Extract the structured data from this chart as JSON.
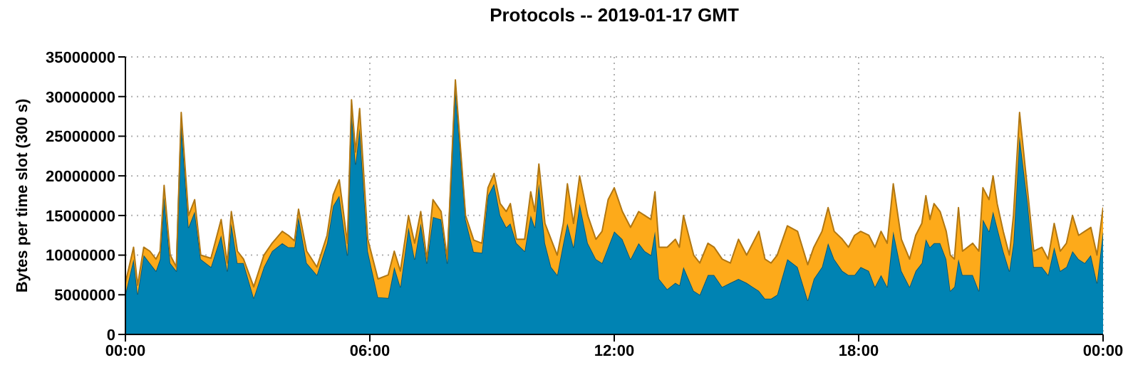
{
  "chart_data": {
    "type": "area",
    "title": "Protocols -- 2019-01-17 GMT",
    "ylabel": "Bytes per time slot (300 s)",
    "stacked": true,
    "grid": true,
    "legend": false,
    "x": [
      0,
      0.2,
      0.3,
      0.45,
      0.6,
      0.75,
      0.85,
      0.95,
      1.1,
      1.25,
      1.37,
      1.55,
      1.7,
      1.85,
      2.1,
      2.35,
      2.5,
      2.6,
      2.75,
      2.9,
      3.15,
      3.4,
      3.6,
      3.85,
      4.0,
      4.15,
      4.25,
      4.45,
      4.7,
      4.95,
      5.1,
      5.25,
      5.45,
      5.55,
      5.65,
      5.75,
      5.95,
      6.2,
      6.45,
      6.6,
      6.75,
      6.95,
      7.1,
      7.25,
      7.4,
      7.55,
      7.75,
      7.9,
      8.1,
      8.35,
      8.55,
      8.75,
      8.9,
      9.05,
      9.2,
      9.35,
      9.45,
      9.6,
      9.8,
      9.95,
      10.05,
      10.15,
      10.3,
      10.45,
      10.6,
      10.75,
      10.85,
      11.0,
      11.15,
      11.35,
      11.55,
      11.7,
      11.85,
      12.0,
      12.2,
      12.4,
      12.6,
      12.75,
      12.9,
      13.0,
      13.1,
      13.3,
      13.5,
      13.6,
      13.7,
      13.95,
      14.1,
      14.3,
      14.45,
      14.65,
      14.85,
      15.05,
      15.25,
      15.4,
      15.55,
      15.7,
      15.85,
      16.0,
      16.25,
      16.5,
      16.75,
      16.9,
      17.1,
      17.25,
      17.4,
      17.6,
      17.75,
      17.9,
      18.05,
      18.25,
      18.4,
      18.55,
      18.7,
      18.85,
      19.05,
      19.25,
      19.4,
      19.55,
      19.65,
      19.75,
      19.85,
      20.0,
      20.15,
      20.25,
      20.35,
      20.45,
      20.55,
      20.8,
      20.95,
      21.05,
      21.2,
      21.3,
      21.4,
      21.55,
      21.7,
      21.8,
      21.95,
      22.15,
      22.3,
      22.5,
      22.65,
      22.8,
      22.95,
      23.1,
      23.25,
      23.4,
      23.55,
      23.7,
      23.85,
      24.0
    ],
    "series": [
      {
        "color": "#0083b3",
        "values": [
          5100000.0,
          9500000.0,
          5100000.0,
          10000000.0,
          9000000.0,
          8000000.0,
          9500000.0,
          17300000.0,
          9000000.0,
          8000000.0,
          26800000.0,
          13500000.0,
          15500000.0,
          9500000.0,
          8500000.0,
          12500000.0,
          8000000.0,
          14000000.0,
          9000000.0,
          9000000.0,
          4600000.0,
          8500000.0,
          10500000.0,
          11500000.0,
          11000000.0,
          11000000.0,
          14800000.0,
          9000000.0,
          7500000.0,
          11500000.0,
          16200000.0,
          17500000.0,
          10000000.0,
          28000000.0,
          21500000.0,
          26000000.0,
          10500000.0,
          4700000.0,
          4600000.0,
          8500000.0,
          6000000.0,
          13500000.0,
          9500000.0,
          14000000.0,
          9000000.0,
          14800000.0,
          14500000.0,
          9000000.0,
          31000000.0,
          14500000.0,
          10400000.0,
          10300000.0,
          17500000.0,
          19000000.0,
          15000000.0,
          13500000.0,
          14000000.0,
          11500000.0,
          10500000.0,
          15000000.0,
          13500000.0,
          19000000.0,
          11500000.0,
          8500000.0,
          7500000.0,
          11500000.0,
          14000000.0,
          11000000.0,
          16500000.0,
          11500000.0,
          9500000.0,
          9000000.0,
          11000000.0,
          13000000.0,
          12000000.0,
          9500000.0,
          11500000.0,
          10500000.0,
          10000000.0,
          13000000.0,
          7000000.0,
          5700000.0,
          6500000.0,
          6200000.0,
          8500000.0,
          5500000.0,
          5000000.0,
          7500000.0,
          7500000.0,
          6000000.0,
          6500000.0,
          7000000.0,
          6500000.0,
          6000000.0,
          5500000.0,
          4500000.0,
          4500000.0,
          5000000.0,
          9500000.0,
          8500000.0,
          4300000.0,
          7000000.0,
          8500000.0,
          11500000.0,
          9500000.0,
          8000000.0,
          7500000.0,
          7500000.0,
          8500000.0,
          8000000.0,
          6000000.0,
          7500000.0,
          6000000.0,
          13000000.0,
          8000000.0,
          6000000.0,
          8000000.0,
          9000000.0,
          12000000.0,
          11000000.0,
          11500000.0,
          11500000.0,
          9500000.0,
          5500000.0,
          6000000.0,
          9500000.0,
          7500000.0,
          7500000.0,
          5500000.0,
          14500000.0,
          13000000.0,
          15500000.0,
          13500000.0,
          10500000.0,
          8000000.0,
          11500000.0,
          25000000.0,
          16500000.0,
          8500000.0,
          8500000.0,
          7500000.0,
          11000000.0,
          8000000.0,
          8500000.0,
          10500000.0,
          9500000.0,
          9000000.0,
          10000000.0,
          6500000.0,
          13000000.0
        ]
      },
      {
        "color": "#fdaa1a",
        "values": [
          1400000.0,
          1500000.0,
          1100000.0,
          1000000.0,
          1500000.0,
          1500000.0,
          1000000.0,
          1500000.0,
          1000000.0,
          500000.0,
          1200000.0,
          1500000.0,
          1500000.0,
          500000.0,
          1100000.0,
          2000000.0,
          1000000.0,
          1500000.0,
          1500000.0,
          500000.0,
          1400000.0,
          1500000.0,
          1000000.0,
          1500000.0,
          1500000.0,
          800000.0,
          1000000.0,
          1500000.0,
          1000000.0,
          1000000.0,
          1400000.0,
          2000000.0,
          1500000.0,
          1600000.0,
          1500000.0,
          2500000.0,
          1500000.0,
          2300000.0,
          2900000.0,
          2000000.0,
          2000000.0,
          1500000.0,
          2000000.0,
          1500000.0,
          500000.0,
          2200000.0,
          1000000.0,
          500000.0,
          1100000.0,
          500000.0,
          1500000.0,
          1200000.0,
          1000000.0,
          1300000.0,
          1500000.0,
          2000000.0,
          2500000.0,
          500000.0,
          1500000.0,
          3000000.0,
          2000000.0,
          2500000.0,
          2500000.0,
          3500000.0,
          2500000.0,
          2500000.0,
          5000000.0,
          3000000.0,
          3500000.0,
          3500000.0,
          2500000.0,
          4000000.0,
          6000000.0,
          5500000.0,
          3500000.0,
          4000000.0,
          4000000.0,
          4500000.0,
          4500000.0,
          5000000.0,
          4000000.0,
          5300000.0,
          5500000.0,
          4800000.0,
          6500000.0,
          4500000.0,
          4000000.0,
          4000000.0,
          3500000.0,
          3500000.0,
          2500000.0,
          5000000.0,
          3500000.0,
          5500000.0,
          7500000.0,
          5000000.0,
          4500000.0,
          5000000.0,
          4200000.0,
          4500000.0,
          4500000.0,
          4000000.0,
          4500000.0,
          4500000.0,
          3500000.0,
          4000000.0,
          3500000.0,
          5000000.0,
          4500000.0,
          4500000.0,
          5000000.0,
          5500000.0,
          5500000.0,
          6000000.0,
          4000000.0,
          3500000.0,
          4500000.0,
          5000000.0,
          5500000.0,
          3500000.0,
          5000000.0,
          4000000.0,
          3500000.0,
          4500000.0,
          3500000.0,
          6500000.0,
          3000000.0,
          4000000.0,
          5000000.0,
          4000000.0,
          4000000.0,
          4500000.0,
          3000000.0,
          2500000.0,
          2000000.0,
          3500000.0,
          3000000.0,
          1500000.0,
          2000000.0,
          2500000.0,
          2000000.0,
          3000000.0,
          2500000.0,
          3000000.0,
          4500000.0,
          3000000.0,
          4000000.0,
          3500000.0,
          3500000.0,
          3000000.0
        ]
      }
    ],
    "xlim": [
      0,
      24
    ],
    "xticks": [
      {
        "value": 0,
        "label": "00:00"
      },
      {
        "value": 6,
        "label": "06:00"
      },
      {
        "value": 12,
        "label": "12:00"
      },
      {
        "value": 18,
        "label": "18:00"
      },
      {
        "value": 24,
        "label": "00:00"
      }
    ],
    "ylim": [
      0,
      35000000
    ],
    "yticks": [
      0,
      5000000,
      10000000,
      15000000,
      20000000,
      25000000,
      30000000,
      35000000
    ]
  }
}
